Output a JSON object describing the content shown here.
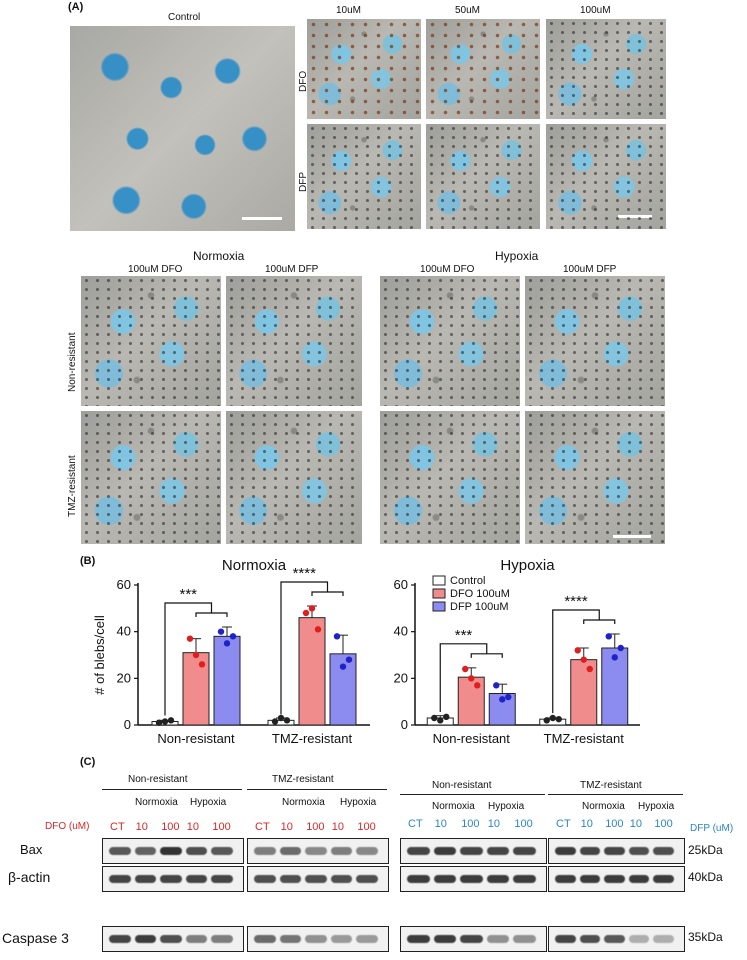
{
  "panel_a": {
    "letter": "(A)",
    "control_label": "Control",
    "concentrations": [
      "10uM",
      "50uM",
      "100uM"
    ],
    "row_labels": [
      "DFO",
      "DFP"
    ],
    "group_titles": [
      "Normoxia",
      "Hypoxia"
    ],
    "column_labels": [
      "100uM DFO",
      "100uM DFP",
      "100uM DFO",
      "100uM DFP"
    ],
    "cell_rows": [
      "Non-resistant",
      "TMZ-resistant"
    ]
  },
  "panel_b": {
    "letter": "(B)",
    "ylabel": "# of blebs/cell",
    "legend": [
      "Control",
      "DFO 100uM",
      "DFP 100uM"
    ],
    "colors": {
      "control": "#ffffff",
      "dfo": "#f08c8c",
      "dfp": "#8c8cf0",
      "dfo_dot": "#e01e1e",
      "dfp_dot": "#1e22c8"
    },
    "chart_data": [
      {
        "type": "bar",
        "title": "Normoxia",
        "categories": [
          "Non-resistant",
          "TMZ-resistant"
        ],
        "ylim": [
          0,
          60
        ],
        "yticks": [
          0,
          20,
          40,
          60
        ],
        "series": [
          {
            "name": "Control",
            "values": [
              1.5,
              2
            ],
            "points": [
              [
                1,
                1.5,
                2
              ],
              [
                1.5,
                3,
                2
              ]
            ],
            "err": [
              0.5,
              1
            ]
          },
          {
            "name": "DFO 100uM",
            "values": [
              31,
              46
            ],
            "points": [
              [
                37,
                30,
                26
              ],
              [
                48,
                50,
                41
              ]
            ],
            "err": [
              6,
              5
            ]
          },
          {
            "name": "DFP 100uM",
            "values": [
              38,
              30.5
            ],
            "points": [
              [
                40,
                35,
                38
              ],
              [
                38,
                25,
                28
              ]
            ],
            "err": [
              4,
              8
            ]
          }
        ],
        "significance": [
          "***",
          "****"
        ]
      },
      {
        "type": "bar",
        "title": "Hypoxia",
        "categories": [
          "Non-resistant",
          "TMZ-resistant"
        ],
        "ylim": [
          0,
          60
        ],
        "yticks": [
          0,
          20,
          40,
          60
        ],
        "series": [
          {
            "name": "Control",
            "values": [
              3,
              2.5
            ],
            "points": [
              [
                3,
                2,
                3.5
              ],
              [
                2,
                3,
                2.5
              ]
            ],
            "err": [
              1,
              0.5
            ]
          },
          {
            "name": "DFO 100uM",
            "values": [
              20.5,
              28
            ],
            "points": [
              [
                24,
                20,
                17
              ],
              [
                32,
                28,
                24
              ]
            ],
            "err": [
              4,
              5
            ]
          },
          {
            "name": "DFP 100uM",
            "values": [
              13.5,
              33
            ],
            "points": [
              [
                17,
                11,
                12
              ],
              [
                38,
                29,
                33
              ]
            ],
            "err": [
              4,
              6
            ]
          }
        ],
        "significance": [
          "***",
          "****"
        ]
      }
    ]
  },
  "panel_c": {
    "letter": "(C)",
    "groups": [
      "Non-resistant",
      "TMZ-resistant",
      "Non-resistant",
      "TMZ-resistant"
    ],
    "subgroups": [
      "Normoxia",
      "Hypoxia"
    ],
    "lanes": [
      "CT",
      "10",
      "100",
      "10",
      "100"
    ],
    "dfo_label": "DFO (uM)",
    "dfp_label": "DFP (uM)",
    "proteins": [
      "Bax",
      "β-actin",
      "Caspase 3"
    ],
    "sizes": [
      "25kDa",
      "40kDa",
      "35kDa"
    ],
    "band_intensity": {
      "bax_dfo": [
        0.8,
        0.75,
        1.0,
        0.85,
        0.8,
        0.6,
        0.7,
        0.55,
        0.6,
        0.55
      ],
      "bax_dfp": [
        0.9,
        0.95,
        0.9,
        0.9,
        0.9,
        0.95,
        0.9,
        0.9,
        0.85,
        0.85
      ],
      "actin_dfo": [
        0.9,
        0.9,
        0.9,
        0.9,
        0.9,
        0.85,
        0.85,
        0.85,
        0.85,
        0.85
      ],
      "actin_dfp": [
        0.95,
        0.95,
        0.95,
        0.95,
        0.95,
        0.95,
        0.95,
        0.95,
        0.95,
        0.95
      ],
      "casp_dfo": [
        0.9,
        0.95,
        0.85,
        0.6,
        0.6,
        0.7,
        0.65,
        0.5,
        0.45,
        0.45
      ],
      "casp_dfp": [
        0.95,
        0.95,
        0.9,
        0.5,
        0.5,
        0.9,
        0.85,
        0.8,
        0.35,
        0.35
      ]
    }
  }
}
